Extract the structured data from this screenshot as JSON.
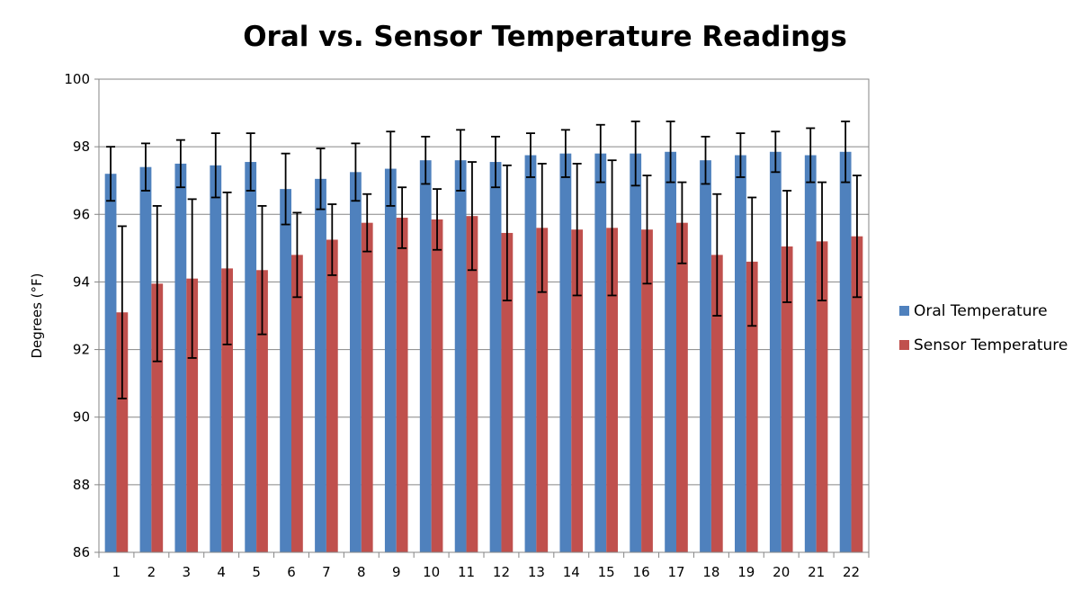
{
  "chart_data": {
    "type": "bar",
    "title": "Oral vs. Sensor Temperature Readings",
    "xlabel": "",
    "ylabel": "Degrees (°F)",
    "ylim": [
      86,
      100
    ],
    "ytick_step": 2,
    "grid": "horizontal",
    "legend_position": "right",
    "categories": [
      "1",
      "2",
      "3",
      "4",
      "5",
      "6",
      "7",
      "8",
      "9",
      "10",
      "11",
      "12",
      "13",
      "14",
      "15",
      "16",
      "17",
      "18",
      "19",
      "20",
      "21",
      "22"
    ],
    "series": [
      {
        "name": "Oral Temperature",
        "color": "#4F81BD",
        "values": [
          97.2,
          97.4,
          97.5,
          97.45,
          97.55,
          96.75,
          97.05,
          97.25,
          97.35,
          97.6,
          97.6,
          97.55,
          97.75,
          97.8,
          97.8,
          97.8,
          97.85,
          97.6,
          97.75,
          97.85,
          97.75,
          97.85
        ],
        "error": [
          0.8,
          0.7,
          0.7,
          0.95,
          0.85,
          1.05,
          0.9,
          0.85,
          1.1,
          0.7,
          0.9,
          0.75,
          0.65,
          0.7,
          0.85,
          0.95,
          0.9,
          0.7,
          0.65,
          0.6,
          0.8,
          0.9
        ]
      },
      {
        "name": "Sensor Temperature",
        "color": "#C0504D",
        "values": [
          93.1,
          93.95,
          94.1,
          94.4,
          94.35,
          94.8,
          95.25,
          95.75,
          95.9,
          95.85,
          95.95,
          95.45,
          95.6,
          95.55,
          95.6,
          95.55,
          95.75,
          94.8,
          94.6,
          95.05,
          95.2,
          95.35
        ],
        "error": [
          2.55,
          2.3,
          2.35,
          2.25,
          1.9,
          1.25,
          1.05,
          0.85,
          0.9,
          0.9,
          1.6,
          2.0,
          1.9,
          1.95,
          2.0,
          1.6,
          1.2,
          1.8,
          1.9,
          1.65,
          1.75,
          1.8
        ]
      }
    ]
  }
}
